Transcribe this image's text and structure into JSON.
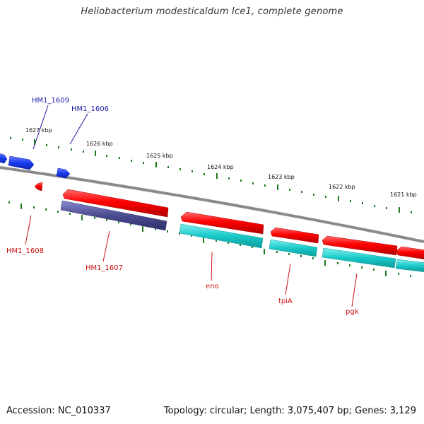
{
  "title": "Heliobacterium modesticaldum Ice1, complete genome",
  "footer": {
    "accession": "Accession: NC_010337",
    "summary": "Topology: circular; Length: 3,075,407 bp; Genes: 3,129"
  },
  "colors": {
    "backbone": "#8a8a8a",
    "ticks": "#1f7a1f",
    "forward_gene": "#ff0000",
    "reverse_gene_cds": "#17c7c7",
    "hypothetical": "#4a4a8f",
    "label_blue": "#1a1aa6",
    "label_red": "#cc1111",
    "small_blue_gene": "#1a3cf0"
  },
  "scale": {
    "ticks": [
      {
        "label": "1627 kbp"
      },
      {
        "label": "1626 kbp"
      },
      {
        "label": "1625 kbp"
      },
      {
        "label": "1624 kbp"
      },
      {
        "label": "1623 kbp"
      },
      {
        "label": "1622 kbp"
      },
      {
        "label": "1621 kbp"
      }
    ]
  },
  "gene_labels": {
    "hm1_1609": "HM1_1609",
    "hm1_1606": "HM1_1606",
    "hm1_1608": "HM1_1608",
    "hm1_1607": "HM1_1607",
    "eno": "eno",
    "tpia": "tpiA",
    "pgk": "pgk"
  }
}
